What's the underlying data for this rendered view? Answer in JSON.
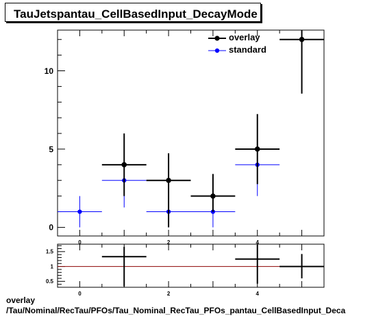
{
  "title": "TauJetspantau_CellBasedInput_DecayMode",
  "footer": {
    "line1": "overlay",
    "line2": "/Tau/Nominal/RecTau/PFOs/Tau_Nominal_RecTau_PFOs_pantau_CellBasedInput_Deca"
  },
  "legend": [
    {
      "name": "overlay",
      "color": "#000000"
    },
    {
      "name": "standard",
      "color": "#0000ff"
    }
  ],
  "chart_data": [
    {
      "type": "scatter",
      "panel": "main",
      "xlim": [
        -0.5,
        5.5
      ],
      "ylim": [
        -0.55,
        12.6
      ],
      "yticks": [
        0,
        5,
        10
      ],
      "xticks": [
        0,
        2,
        4
      ],
      "series": [
        {
          "name": "overlay",
          "color": "#000000",
          "points": [
            {
              "x": 1,
              "y": 4,
              "xerr": 0.5,
              "yerr": 2
            },
            {
              "x": 2,
              "y": 3,
              "xerr": 0.5,
              "yerr_low": 3,
              "yerr_high": 1.73
            },
            {
              "x": 3,
              "y": 2,
              "xerr": 0.5,
              "yerr_low": 1,
              "yerr_high": 1.41
            },
            {
              "x": 4,
              "y": 5,
              "xerr": 0.5,
              "yerr": 2.24
            },
            {
              "x": 5,
              "y": 12,
              "xerr": 0.5,
              "yerr_low": 3.46,
              "yerr_high": 0.7
            }
          ]
        },
        {
          "name": "standard",
          "color": "#0000ff",
          "points": [
            {
              "x": 0,
              "y": 1,
              "xerr": 0.5,
              "yerr": 1
            },
            {
              "x": 1,
              "y": 3,
              "xerr": 0.5,
              "yerr": 1.73
            },
            {
              "x": 2,
              "y": 1,
              "xerr": 0.5,
              "yerr": 1
            },
            {
              "x": 3,
              "y": 1,
              "xerr": 0.5,
              "yerr": 1
            },
            {
              "x": 4,
              "y": 4,
              "xerr": 0.5,
              "yerr": 2
            }
          ]
        }
      ]
    },
    {
      "type": "scatter",
      "panel": "ratio",
      "xlim": [
        -0.5,
        5.5
      ],
      "ylim": [
        0.3,
        1.75
      ],
      "yticks": [
        0.5,
        1,
        1.5
      ],
      "xticks": [
        0,
        2,
        4
      ],
      "reference_line": 1,
      "reference_color": "#8b0000",
      "series": [
        {
          "name": "ratio",
          "color": "#000000",
          "points": [
            {
              "x": 1,
              "y": 1.33,
              "xerr": 0.5,
              "yerr_low": 1.0,
              "yerr_high": 0.33
            },
            {
              "x": 4,
              "y": 1.25,
              "xerr": 0.5,
              "yerr_low": 0.83,
              "yerr_high": 0.5
            },
            {
              "x": 5,
              "y": 1.0,
              "xerr": 0.5,
              "yerr_low": 0.4,
              "yerr_high": 0.42
            }
          ]
        }
      ]
    }
  ]
}
